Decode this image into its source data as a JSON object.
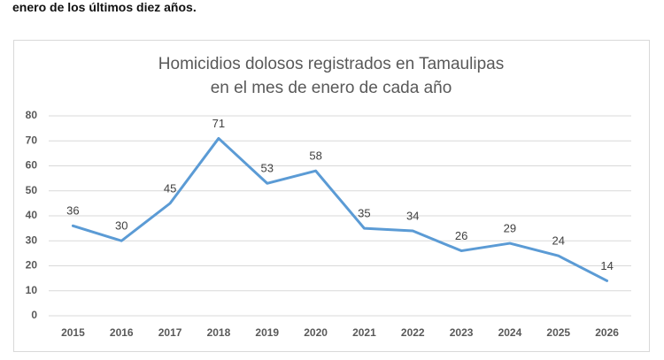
{
  "document_text": "enero de los últimos diez años.",
  "chart_data": {
    "type": "line",
    "title": [
      "Homicidios dolosos registrados en Tamaulipas",
      "en el mes de enero de cada año"
    ],
    "categories": [
      "2015",
      "2016",
      "2017",
      "2018",
      "2019",
      "2020",
      "2021",
      "2022",
      "2023",
      "2024",
      "2025",
      "2026"
    ],
    "values": [
      36,
      30,
      45,
      71,
      53,
      58,
      35,
      34,
      26,
      29,
      24,
      14
    ],
    "color": "#5b9bd5",
    "ylim": [
      0,
      80
    ],
    "yticks": [
      0,
      10,
      20,
      30,
      40,
      50,
      60,
      70,
      80
    ],
    "grid": true,
    "data_labels": true
  }
}
